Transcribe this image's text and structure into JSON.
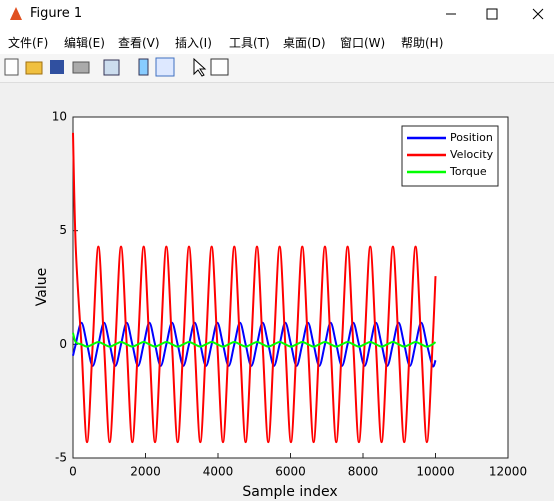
{
  "window": {
    "title": "Figure 1"
  },
  "menu": [
    "文件(F)",
    "编辑(E)",
    "查看(V)",
    "插入(I)",
    "工具(T)",
    "桌面(D)",
    "窗口(W)",
    "帮助(H)"
  ],
  "chart_data": {
    "type": "line",
    "xlabel": "Sample index",
    "ylabel": "Value",
    "x": [
      0,
      75,
      231.25,
      387.5,
      543.75,
      700,
      856.25,
      1012.5,
      1168.75,
      1325,
      1481.25,
      1637.5,
      1793.75,
      1950,
      2106.25,
      2262.5,
      2418.75,
      2575,
      2731.25,
      2887.5,
      3043.75,
      3200,
      3356.25,
      3512.5,
      3668.75,
      3825,
      3981.25,
      4137.5,
      4293.75,
      4450,
      4606.25,
      4762.5,
      4918.75,
      5075,
      5231.25,
      5387.5,
      5543.75,
      5700,
      5856.25,
      6012.5,
      6168.75,
      6325,
      6481.25,
      6637.5,
      6793.75,
      6950,
      7106.25,
      7262.5,
      7418.75,
      7575,
      7731.25,
      7887.5,
      8043.75,
      8200,
      8356.25,
      8512.5,
      8668.75,
      8825,
      8981.25,
      9137.5,
      9293.75,
      9450,
      9606.25,
      9762.5,
      9918.75,
      10000
    ],
    "series": [
      {
        "name": "Position",
        "color": "#0000ff",
        "values": [
          -0.5,
          0,
          0.95,
          0,
          -0.95,
          0,
          0.95,
          0,
          -0.95,
          0,
          0.95,
          0,
          -0.95,
          0,
          0.95,
          0,
          -0.95,
          0,
          0.95,
          0,
          -0.95,
          0,
          0.95,
          0,
          -0.95,
          0,
          0.95,
          0,
          -0.95,
          0,
          0.95,
          0,
          -0.95,
          0,
          0.95,
          0,
          -0.95,
          0,
          0.95,
          0,
          -0.95,
          0,
          0.95,
          0,
          -0.95,
          0,
          0.95,
          0,
          -0.95,
          0,
          0.95,
          0,
          -0.95,
          0,
          0.95,
          0,
          -0.95,
          0,
          0.95,
          0,
          -0.95,
          0,
          0.95,
          0,
          -0.95,
          -0.7
        ]
      },
      {
        "name": "Velocity",
        "color": "#ff0000",
        "values": [
          9.3,
          4.3,
          0,
          -4.3,
          0,
          4.3,
          0,
          -4.3,
          0,
          4.3,
          0,
          -4.3,
          0,
          4.3,
          0,
          -4.3,
          0,
          4.3,
          0,
          -4.3,
          0,
          4.3,
          0,
          -4.3,
          0,
          4.3,
          0,
          -4.3,
          0,
          4.3,
          0,
          -4.3,
          0,
          4.3,
          0,
          -4.3,
          0,
          4.3,
          0,
          -4.3,
          0,
          4.3,
          0,
          -4.3,
          0,
          4.3,
          0,
          -4.3,
          0,
          4.3,
          0,
          -4.3,
          0,
          4.3,
          0,
          -4.3,
          0,
          4.3,
          0,
          -4.3,
          0,
          4.3,
          0,
          -4.3,
          0,
          3
        ]
      },
      {
        "name": "Torque",
        "color": "#00ff00",
        "values": [
          0.5,
          0.1,
          0,
          -0.1,
          0,
          0.1,
          0,
          -0.1,
          0,
          0.1,
          0,
          -0.1,
          0,
          0.1,
          0,
          -0.1,
          0,
          0.1,
          0,
          -0.1,
          0,
          0.1,
          0,
          -0.1,
          0,
          0.1,
          0,
          -0.1,
          0,
          0.1,
          0,
          -0.1,
          0,
          0.1,
          0,
          -0.1,
          0,
          0.1,
          0,
          -0.1,
          0,
          0.1,
          0,
          -0.1,
          0,
          0.1,
          0,
          -0.1,
          0,
          0.1,
          0,
          -0.1,
          0,
          0.1,
          0,
          -0.1,
          0,
          0.1,
          0,
          -0.1,
          0,
          0.1,
          0,
          -0.1,
          0,
          0.1
        ]
      }
    ],
    "xlim": [
      0,
      12000
    ],
    "xticks": [
      0,
      2000,
      4000,
      6000,
      8000,
      10000,
      12000
    ],
    "ylim": [
      -5,
      10
    ],
    "yticks": [
      -5,
      0,
      5,
      10
    ],
    "grid": false,
    "legend": "northeast"
  }
}
